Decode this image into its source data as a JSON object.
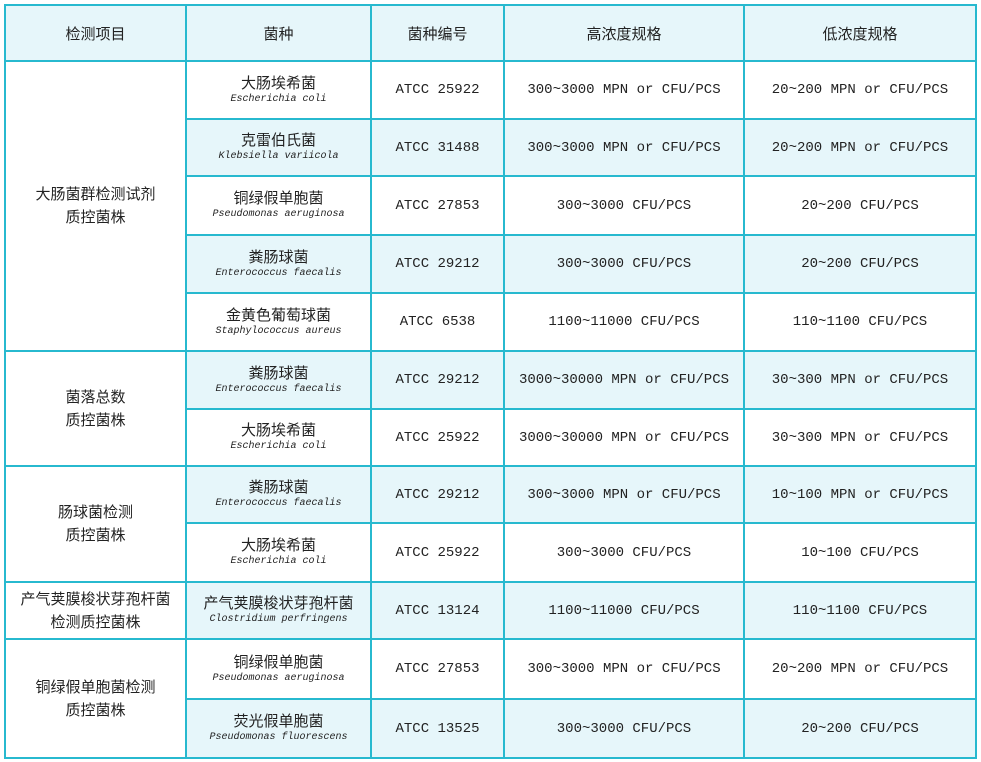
{
  "table": {
    "headers": [
      "检测项目",
      "菌种",
      "菌种编号",
      "高浓度规格",
      "低浓度规格"
    ],
    "groups": [
      {
        "label_lines": [
          "大肠菌群检测试剂",
          "质控菌株"
        ],
        "rows": [
          {
            "cn": "大肠埃希菌",
            "latin": "Escherichia coli",
            "atcc": "ATCC 25922",
            "high": "300~3000 MPN or CFU/PCS",
            "low": "20~200 MPN or CFU/PCS"
          },
          {
            "cn": "克雷伯氏菌",
            "latin": "Klebsiella variicola",
            "atcc": "ATCC 31488",
            "high": "300~3000 MPN or CFU/PCS",
            "low": "20~200 MPN or CFU/PCS"
          },
          {
            "cn": "铜绿假单胞菌",
            "latin": "Pseudomonas aeruginosa",
            "atcc": "ATCC 27853",
            "high": "300~3000 CFU/PCS",
            "low": "20~200 CFU/PCS"
          },
          {
            "cn": "粪肠球菌",
            "latin": "Enterococcus faecalis",
            "atcc": "ATCC 29212",
            "high": "300~3000 CFU/PCS",
            "low": "20~200 CFU/PCS"
          },
          {
            "cn": "金黄色葡萄球菌",
            "latin": "Staphylococcus aureus",
            "atcc": "ATCC 6538",
            "high": "1100~11000 CFU/PCS",
            "low": "110~1100 CFU/PCS"
          }
        ]
      },
      {
        "label_lines": [
          "菌落总数",
          "质控菌株"
        ],
        "rows": [
          {
            "cn": "粪肠球菌",
            "latin": "Enterococcus faecalis",
            "atcc": "ATCC 29212",
            "high": "3000~30000 MPN or CFU/PCS",
            "low": "30~300 MPN or CFU/PCS"
          },
          {
            "cn": "大肠埃希菌",
            "latin": "Escherichia coli",
            "atcc": "ATCC 25922",
            "high": "3000~30000 MPN or CFU/PCS",
            "low": "30~300 MPN or CFU/PCS"
          }
        ]
      },
      {
        "label_lines": [
          "肠球菌检测",
          "质控菌株"
        ],
        "rows": [
          {
            "cn": "粪肠球菌",
            "latin": "Enterococcus faecalis",
            "atcc": "ATCC 29212",
            "high": "300~3000 MPN or CFU/PCS",
            "low": "10~100 MPN or CFU/PCS"
          },
          {
            "cn": "大肠埃希菌",
            "latin": "Escherichia coli",
            "atcc": "ATCC 25922",
            "high": "300~3000 CFU/PCS",
            "low": "10~100 CFU/PCS"
          }
        ]
      },
      {
        "label_lines": [
          "产气荚膜梭状芽孢杆菌",
          "检测质控菌株"
        ],
        "rows": [
          {
            "cn": "产气荚膜梭状芽孢杆菌",
            "latin": "Clostridium perfringens",
            "atcc": "ATCC 13124",
            "high": "1100~11000 CFU/PCS",
            "low": "110~1100 CFU/PCS"
          }
        ]
      },
      {
        "label_lines": [
          "铜绿假单胞菌检测",
          "质控菌株"
        ],
        "rows": [
          {
            "cn": "铜绿假单胞菌",
            "latin": "Pseudomonas aeruginosa",
            "atcc": "ATCC 27853",
            "high": "300~3000 MPN or CFU/PCS",
            "low": "20~200 MPN or CFU/PCS"
          },
          {
            "cn": "荧光假单胞菌",
            "latin": "Pseudomonas fluorescens",
            "atcc": "ATCC 13525",
            "high": "300~3000 CFU/PCS",
            "low": "20~200 CFU/PCS"
          }
        ]
      }
    ],
    "colors": {
      "border": "#27b9cf",
      "shade": "#e6f6fa"
    }
  }
}
